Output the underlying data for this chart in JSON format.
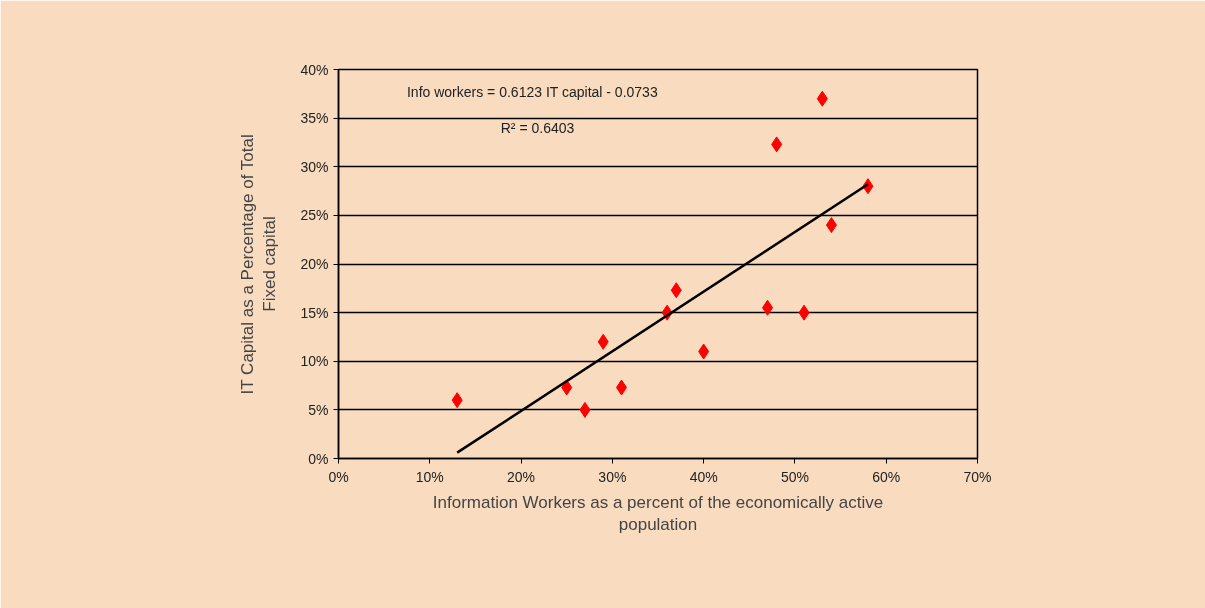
{
  "chart_data": {
    "type": "scatter",
    "xlabel": "Information Workers as a percent of the economically active\npopulation",
    "ylabel": "IT Capital as a Percentage of Total\nFixed capital",
    "annotations": [
      "Info workers = 0.6123 IT capital - 0.0733",
      "R² = 0.6403"
    ],
    "series": [
      {
        "color": "#ff0000",
        "marker": "diamond",
        "x": [
          13,
          25,
          27,
          29,
          31,
          36,
          37,
          40,
          47,
          51,
          48,
          53,
          54,
          58
        ],
        "values": [
          6,
          7.3,
          5,
          12,
          7.3,
          15,
          17.3,
          11,
          15.5,
          15,
          32.3,
          37,
          24,
          28
        ]
      },
      {
        "type": "line",
        "color": "#000000",
        "marker": "none",
        "line_style": "solid",
        "x": [
          13,
          58
        ],
        "values": [
          0.6,
          28.2
        ]
      }
    ],
    "xlim": [
      0,
      70
    ],
    "ylim": [
      0,
      40
    ],
    "xticks": [
      {
        "value": 0,
        "label": "0%"
      },
      {
        "value": 10,
        "label": "10%"
      },
      {
        "value": 20,
        "label": "20%"
      },
      {
        "value": 30,
        "label": "30%"
      },
      {
        "value": 40,
        "label": "40%"
      },
      {
        "value": 50,
        "label": "50%"
      },
      {
        "value": 60,
        "label": "60%"
      },
      {
        "value": 70,
        "label": "70%"
      }
    ],
    "yticks": [
      {
        "value": 0,
        "label": "0%"
      },
      {
        "value": 5,
        "label": "5%"
      },
      {
        "value": 10,
        "label": "10%"
      },
      {
        "value": 15,
        "label": "15%"
      },
      {
        "value": 20,
        "label": "20%"
      },
      {
        "value": 25,
        "label": "25%"
      },
      {
        "value": 30,
        "label": "30%"
      },
      {
        "value": 35,
        "label": "35%"
      },
      {
        "value": 40,
        "label": "40%"
      }
    ],
    "grid": "y"
  }
}
